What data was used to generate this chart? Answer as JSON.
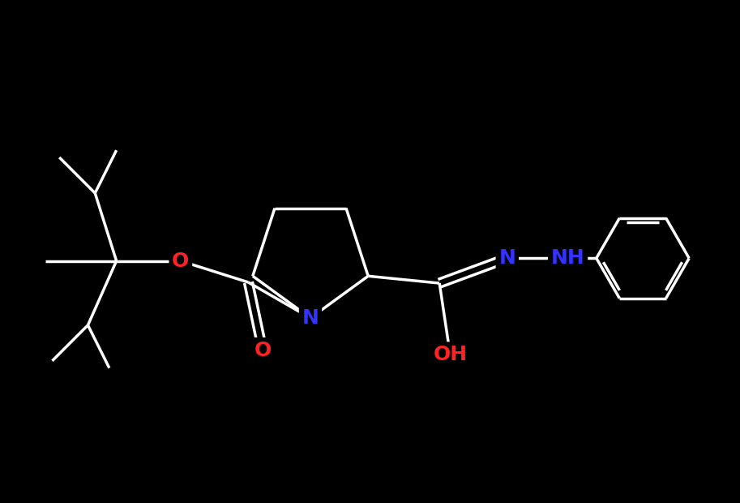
{
  "background_color": "#000000",
  "bond_color": "#ffffff",
  "atom_colors": {
    "N": "#3333ff",
    "O": "#ff2222",
    "C": "#ffffff",
    "H": "#ffffff"
  },
  "figsize": [
    9.13,
    6.2
  ],
  "dpi": 100,
  "bond_lw": 2.5,
  "label_fontsize": 18
}
